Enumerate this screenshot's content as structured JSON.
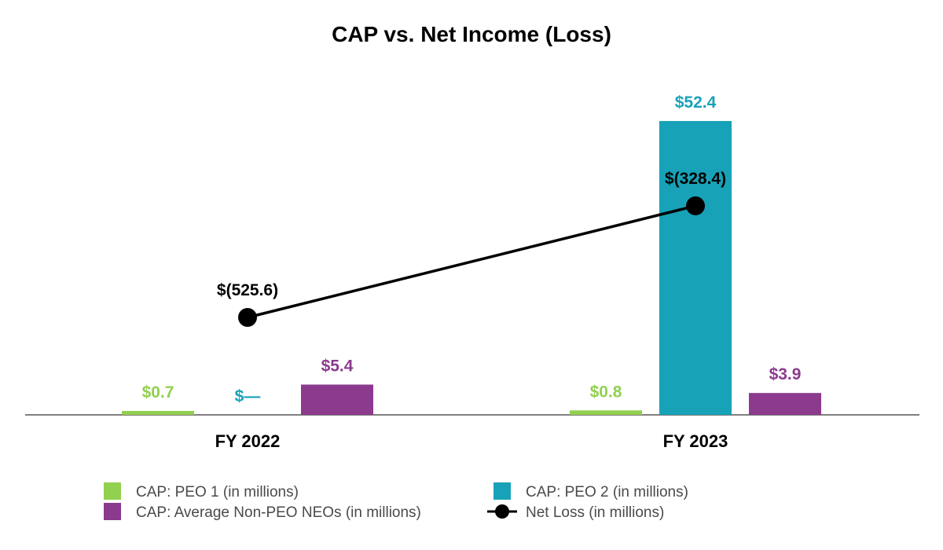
{
  "chart_data": {
    "type": "bar",
    "title": "CAP vs. Net Income (Loss)",
    "categories": [
      "FY 2022",
      "FY 2023"
    ],
    "series": [
      {
        "name": "CAP: PEO 1 (in millions)",
        "kind": "bar",
        "color": "#92d050",
        "values": [
          0.7,
          0.8
        ],
        "labels": [
          "$0.7",
          "$0.8"
        ]
      },
      {
        "name": "CAP: PEO 2 (in millions)",
        "kind": "bar",
        "color": "#17a2b8",
        "values": [
          0,
          52.4
        ],
        "labels": [
          "$—",
          "$52.4"
        ]
      },
      {
        "name": "CAP: Average Non-PEO NEOs (in millions)",
        "kind": "bar",
        "color": "#8b3a8e",
        "values": [
          5.4,
          3.9
        ],
        "labels": [
          "$5.4",
          "$3.9"
        ]
      },
      {
        "name": "Net Loss (in millions)",
        "kind": "line",
        "color": "#000000",
        "values": [
          -525.6,
          -328.4
        ],
        "labels": [
          "$(525.6)",
          "$(328.4)"
        ]
      }
    ],
    "legend_position": "bottom",
    "grid": false
  }
}
